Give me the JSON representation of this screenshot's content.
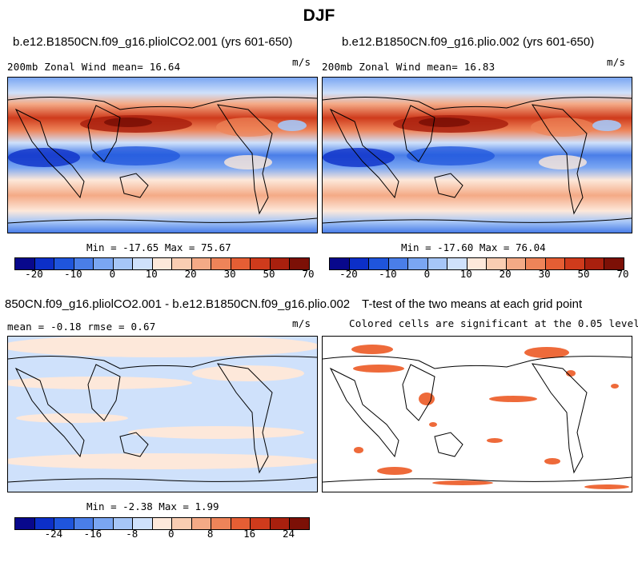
{
  "figure_title": "DJF",
  "panels": {
    "p1": {
      "title": "b.e12.B1850CN.f09_g16.pliolCO2.001 (yrs 601-650)",
      "left_label": "200mb Zonal Wind  mean=  16.64",
      "units": "m/s",
      "stats": "Min = -17.65 Max =  75.67"
    },
    "p2": {
      "title": "b.e12.B1850CN.f09_g16.plio.002 (yrs 601-650)",
      "left_label": "200mb Zonal Wind  mean=  16.83",
      "units": "m/s",
      "stats": "Min = -17.60 Max =  76.04"
    },
    "p3": {
      "title": "850CN.f09_g16.pliolCO2.001 - b.e12.B1850CN.f09_g16.plio.002",
      "left_label": "mean =  -0.18    rmse =   0.67",
      "units": "m/s",
      "stats": "Min =  -2.38 Max =   1.99"
    },
    "p4": {
      "title": "T-test of the two means at each grid point",
      "subtitle": "Colored cells are significant at the 0.05 level"
    }
  },
  "colorbars": {
    "wind_colors": [
      "#08088c",
      "#0c2fc8",
      "#1f55dc",
      "#4a7ee8",
      "#7aa6f2",
      "#a6c6f7",
      "#cfe1fb",
      "#fde8da",
      "#f9cdb2",
      "#f4aa86",
      "#ee8459",
      "#e55e34",
      "#cf3b1c",
      "#a9200e",
      "#7c1006"
    ],
    "wind_ticks": [
      "-20",
      "-10",
      "0",
      "10",
      "20",
      "30",
      "50",
      "70"
    ],
    "diff_colors": [
      "#08088c",
      "#0c2fc8",
      "#1f55dc",
      "#4a7ee8",
      "#7aa6f2",
      "#a6c6f7",
      "#cfe1fb",
      "#fde8da",
      "#f9cdb2",
      "#f4aa86",
      "#ee8459",
      "#e55e34",
      "#cf3b1c",
      "#a9200e",
      "#7c1006"
    ],
    "diff_ticks": [
      "-24",
      "-16",
      "-8",
      "0",
      "8",
      "16",
      "24"
    ]
  },
  "chart_data": [
    {
      "type": "heatmap",
      "title": "b.e12.B1850CN.f09_g16.pliolCO2.001 (yrs 601-650)",
      "variable": "200mb Zonal Wind",
      "units": "m/s",
      "mean": 16.64,
      "min": -17.65,
      "max": 75.67,
      "levels": [
        -20,
        -15,
        -10,
        -5,
        0,
        5,
        10,
        15,
        20,
        25,
        30,
        40,
        50,
        60,
        70
      ]
    },
    {
      "type": "heatmap",
      "title": "b.e12.B1850CN.f09_g16.plio.002 (yrs 601-650)",
      "variable": "200mb Zonal Wind",
      "units": "m/s",
      "mean": 16.83,
      "min": -17.6,
      "max": 76.04,
      "levels": [
        -20,
        -15,
        -10,
        -5,
        0,
        5,
        10,
        15,
        20,
        25,
        30,
        40,
        50,
        60,
        70
      ]
    },
    {
      "type": "heatmap",
      "title": "850CN.f09_g16.pliolCO2.001 - b.e12.B1850CN.f09_g16.plio.002",
      "units": "m/s",
      "mean": -0.18,
      "rmse": 0.67,
      "min": -2.38,
      "max": 1.99,
      "levels": [
        -28,
        -24,
        -20,
        -16,
        -12,
        -8,
        -4,
        0,
        4,
        8,
        12,
        16,
        20,
        24,
        28
      ]
    },
    {
      "type": "heatmap",
      "title": "T-test of the two means at each grid point",
      "significance_level": 0.05
    }
  ]
}
